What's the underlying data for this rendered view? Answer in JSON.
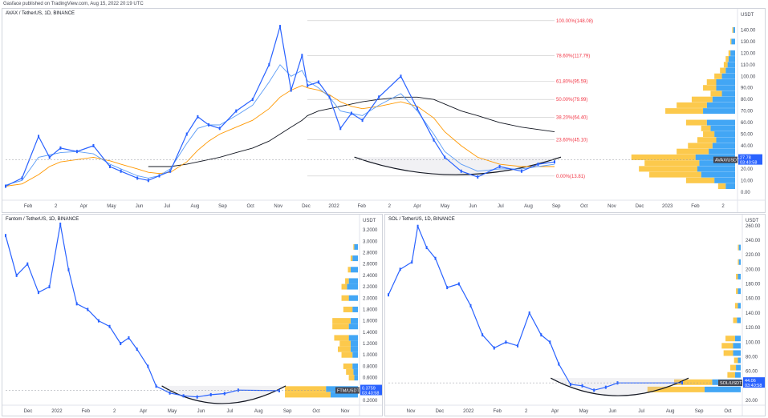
{
  "header": {
    "published": "Gasface published on TradingView.com, Aug 15, 2022 20:19 UTC"
  },
  "colors": {
    "candle": "#2962ff",
    "candle_up": "#5b9cf6",
    "ma_fast": "#5b9cf6",
    "ma_mid": "#ff9800",
    "ma_slow": "#131722",
    "vp_up": "#fbc02d",
    "vp_down": "#2196f3",
    "fib": "#f23645"
  },
  "chart_data": [
    {
      "id": "avax",
      "type": "line",
      "title": "AVAX / TetherUS, 1D, BINANCE",
      "unit": "USDT",
      "x_ticks": [
        "Feb",
        "2",
        "Apr",
        "May",
        "Jun",
        "Jul",
        "Aug",
        "Sep",
        "Oct",
        "Nov",
        "Dec",
        "2022",
        "Feb",
        "2",
        "Apr",
        "May",
        "Jun",
        "Jul",
        "Aug",
        "Sep",
        "Oct",
        "Nov",
        "Dec",
        "2023",
        "Feb",
        "2"
      ],
      "y_ticks": [
        "140.00",
        "130.00",
        "120.00",
        "110.00",
        "100.00",
        "90.00",
        "80.00",
        "70.00",
        "60.00",
        "50.00",
        "40.00",
        "30.00",
        "20.00",
        "10.00",
        "0.00"
      ],
      "ylim": [
        -5,
        150
      ],
      "x": [
        0,
        0.03,
        0.06,
        0.08,
        0.1,
        0.13,
        0.16,
        0.19,
        0.21,
        0.24,
        0.26,
        0.28,
        0.3,
        0.33,
        0.35,
        0.37,
        0.39,
        0.42,
        0.45,
        0.48,
        0.5,
        0.52,
        0.54,
        0.55,
        0.57,
        0.59,
        0.61,
        0.63,
        0.65,
        0.68,
        0.72,
        0.75,
        0.78,
        0.8,
        0.83,
        0.86,
        0.9,
        0.94,
        0.97,
        1
      ],
      "values": [
        5,
        12,
        48,
        30,
        38,
        35,
        40,
        22,
        18,
        12,
        10,
        14,
        18,
        50,
        65,
        58,
        55,
        70,
        80,
        110,
        143,
        88,
        118,
        92,
        95,
        82,
        55,
        68,
        62,
        82,
        100,
        72,
        45,
        30,
        18,
        13,
        22,
        18,
        24,
        26
      ],
      "ma_fast": [
        6,
        10,
        30,
        32,
        34,
        35,
        33,
        24,
        20,
        14,
        12,
        14,
        20,
        42,
        55,
        58,
        58,
        66,
        75,
        95,
        110,
        100,
        105,
        96,
        90,
        82,
        70,
        68,
        66,
        75,
        85,
        70,
        50,
        35,
        24,
        18,
        20,
        20,
        22,
        24
      ],
      "ma_mid": [
        5,
        7,
        15,
        22,
        26,
        28,
        30,
        27,
        24,
        20,
        17,
        16,
        17,
        26,
        36,
        44,
        50,
        56,
        62,
        72,
        82,
        88,
        92,
        90,
        88,
        84,
        78,
        74,
        72,
        74,
        78,
        74,
        64,
        52,
        40,
        30,
        24,
        22,
        22,
        22
      ],
      "ma_slow": [
        null,
        null,
        null,
        null,
        null,
        null,
        null,
        null,
        null,
        null,
        22,
        22,
        22,
        24,
        26,
        28,
        30,
        34,
        38,
        44,
        50,
        56,
        62,
        66,
        70,
        72,
        74,
        76,
        78,
        80,
        82,
        82,
        80,
        76,
        70,
        66,
        60,
        56,
        54,
        52
      ],
      "fib_levels": [
        {
          "label": "100.00%(148.08)",
          "value": 148.08
        },
        {
          "label": "78.60%(117.79)",
          "value": 117.79
        },
        {
          "label": "61.80%(95.59)",
          "value": 95.59
        },
        {
          "label": "50.00%(79.99)",
          "value": 79.99
        },
        {
          "label": "38.20%(64.40)",
          "value": 64.4
        },
        {
          "label": "23.60%(45.10)",
          "value": 45.1
        },
        {
          "label": "0.00%(13.81)",
          "value": 13.81
        }
      ],
      "current": {
        "label": "AVAX/USDT",
        "price": "27.78",
        "countdown": "03:40:58"
      },
      "volume_profile": [
        {
          "price": 5,
          "up": 8,
          "down": 10
        },
        {
          "price": 10,
          "up": 30,
          "down": 22
        },
        {
          "price": 15,
          "up": 55,
          "down": 36
        },
        {
          "price": 20,
          "up": 62,
          "down": 40
        },
        {
          "price": 25,
          "up": 58,
          "down": 38
        },
        {
          "price": 30,
          "up": 68,
          "down": 42
        },
        {
          "price": 35,
          "up": 34,
          "down": 28
        },
        {
          "price": 40,
          "up": 26,
          "down": 24
        },
        {
          "price": 45,
          "up": 20,
          "down": 20
        },
        {
          "price": 50,
          "up": 12,
          "down": 22
        },
        {
          "price": 55,
          "up": 10,
          "down": 26
        },
        {
          "price": 60,
          "up": 22,
          "down": 30
        },
        {
          "price": 70,
          "up": 40,
          "down": 34
        },
        {
          "price": 75,
          "up": 32,
          "down": 30
        },
        {
          "price": 80,
          "up": 22,
          "down": 24
        },
        {
          "price": 85,
          "up": 12,
          "down": 14
        },
        {
          "price": 90,
          "up": 14,
          "down": 20
        },
        {
          "price": 95,
          "up": 10,
          "down": 20
        },
        {
          "price": 100,
          "up": 8,
          "down": 14
        },
        {
          "price": 105,
          "up": 6,
          "down": 10
        },
        {
          "price": 110,
          "up": 4,
          "down": 8
        },
        {
          "price": 115,
          "up": 3,
          "down": 7
        },
        {
          "price": 120,
          "up": 2,
          "down": 5
        },
        {
          "price": 130,
          "up": 1,
          "down": 4
        },
        {
          "price": 140,
          "up": 1,
          "down": 2
        }
      ]
    },
    {
      "id": "ftm",
      "type": "line",
      "title": "Fantom / TetherUS, 1D, BINANCE",
      "unit": "USDT",
      "x_ticks": [
        "Dec",
        "2022",
        "Feb",
        "2",
        "Apr",
        "May",
        "Jun",
        "Jul",
        "Aug",
        "Sep",
        "Oct",
        "Nov"
      ],
      "y_ticks": [
        "3.2000",
        "3.0000",
        "2.8000",
        "2.6000",
        "2.4000",
        "2.2000",
        "2.0000",
        "1.8000",
        "1.6000",
        "1.4000",
        "1.2000",
        "1.0000",
        "0.8000",
        "0.6000",
        "0.4000",
        "0.2000"
      ],
      "ylim": [
        0.2,
        3.3
      ],
      "x": [
        0,
        0.04,
        0.08,
        0.12,
        0.16,
        0.2,
        0.23,
        0.26,
        0.3,
        0.34,
        0.38,
        0.42,
        0.45,
        0.48,
        0.52,
        0.55,
        0.6,
        0.65,
        0.7,
        0.75,
        0.8,
        0.85,
        1
      ],
      "values": [
        3.1,
        2.4,
        2.6,
        2.1,
        2.2,
        3.3,
        2.5,
        1.9,
        1.8,
        1.6,
        1.5,
        1.2,
        1.3,
        1.1,
        0.8,
        0.45,
        0.33,
        0.28,
        0.26,
        0.3,
        0.32,
        0.38,
        0.37
      ],
      "current": {
        "label": "FTM/USDT",
        "price": "0.3759",
        "countdown": "03:40:58"
      },
      "volume_profile": [
        {
          "price": 0.3,
          "up": 50,
          "down": 30
        },
        {
          "price": 0.4,
          "up": 45,
          "down": 35
        },
        {
          "price": 0.6,
          "up": 6,
          "down": 4
        },
        {
          "price": 0.7,
          "up": 8,
          "down": 5
        },
        {
          "price": 0.8,
          "up": 10,
          "down": 6
        },
        {
          "price": 1.0,
          "up": 12,
          "down": 6
        },
        {
          "price": 1.1,
          "up": 14,
          "down": 8
        },
        {
          "price": 1.2,
          "up": 12,
          "down": 8
        },
        {
          "price": 1.3,
          "up": 16,
          "down": 10
        },
        {
          "price": 1.5,
          "up": 18,
          "down": 10
        },
        {
          "price": 1.6,
          "up": 20,
          "down": 8
        },
        {
          "price": 1.8,
          "up": 10,
          "down": 6
        },
        {
          "price": 2.0,
          "up": 8,
          "down": 10
        },
        {
          "price": 2.2,
          "up": 6,
          "down": 12
        },
        {
          "price": 2.3,
          "up": 4,
          "down": 10
        },
        {
          "price": 2.5,
          "up": 3,
          "down": 8
        },
        {
          "price": 2.7,
          "up": 2,
          "down": 6
        },
        {
          "price": 2.9,
          "up": 1,
          "down": 4
        }
      ]
    },
    {
      "id": "sol",
      "type": "line",
      "title": "SOL / TetherUS, 1D, BINANCE",
      "unit": "USDT",
      "x_ticks": [
        "Nov",
        "Dec",
        "2022",
        "Feb",
        "2",
        "Apr",
        "May",
        "Jun",
        "Jul",
        "Aug",
        "Sep",
        "Oct"
      ],
      "y_ticks": [
        "260.00",
        "240.00",
        "220.00",
        "200.00",
        "180.00",
        "160.00",
        "140.00",
        "120.00",
        "100.00",
        "80.00",
        "60.00",
        "40.00",
        "20.00"
      ],
      "ylim": [
        20,
        262
      ],
      "x": [
        0,
        0.04,
        0.08,
        0.1,
        0.13,
        0.16,
        0.2,
        0.24,
        0.28,
        0.32,
        0.36,
        0.4,
        0.44,
        0.48,
        0.52,
        0.55,
        0.58,
        0.62,
        0.66,
        0.7,
        0.74,
        0.78,
        1
      ],
      "values": [
        165,
        200,
        210,
        259,
        230,
        215,
        175,
        180,
        150,
        110,
        92,
        100,
        95,
        140,
        110,
        100,
        70,
        42,
        40,
        34,
        38,
        44,
        44
      ],
      "current": {
        "label": "SOL/USDT",
        "price": "44.06",
        "countdown": "03:40:58"
      },
      "volume_profile": [
        {
          "price": 35,
          "up": 60,
          "down": 38
        },
        {
          "price": 45,
          "up": 40,
          "down": 30
        },
        {
          "price": 55,
          "up": 8,
          "down": 6
        },
        {
          "price": 65,
          "up": 6,
          "down": 5
        },
        {
          "price": 75,
          "up": 4,
          "down": 3
        },
        {
          "price": 85,
          "up": 10,
          "down": 8
        },
        {
          "price": 95,
          "up": 12,
          "down": 8
        },
        {
          "price": 105,
          "up": 10,
          "down": 6
        },
        {
          "price": 130,
          "up": 4,
          "down": 4
        },
        {
          "price": 150,
          "up": 3,
          "down": 3
        },
        {
          "price": 170,
          "up": 2,
          "down": 3
        },
        {
          "price": 190,
          "up": 2,
          "down": 3
        },
        {
          "price": 210,
          "up": 1,
          "down": 2
        },
        {
          "price": 230,
          "up": 1,
          "down": 2
        }
      ]
    }
  ]
}
